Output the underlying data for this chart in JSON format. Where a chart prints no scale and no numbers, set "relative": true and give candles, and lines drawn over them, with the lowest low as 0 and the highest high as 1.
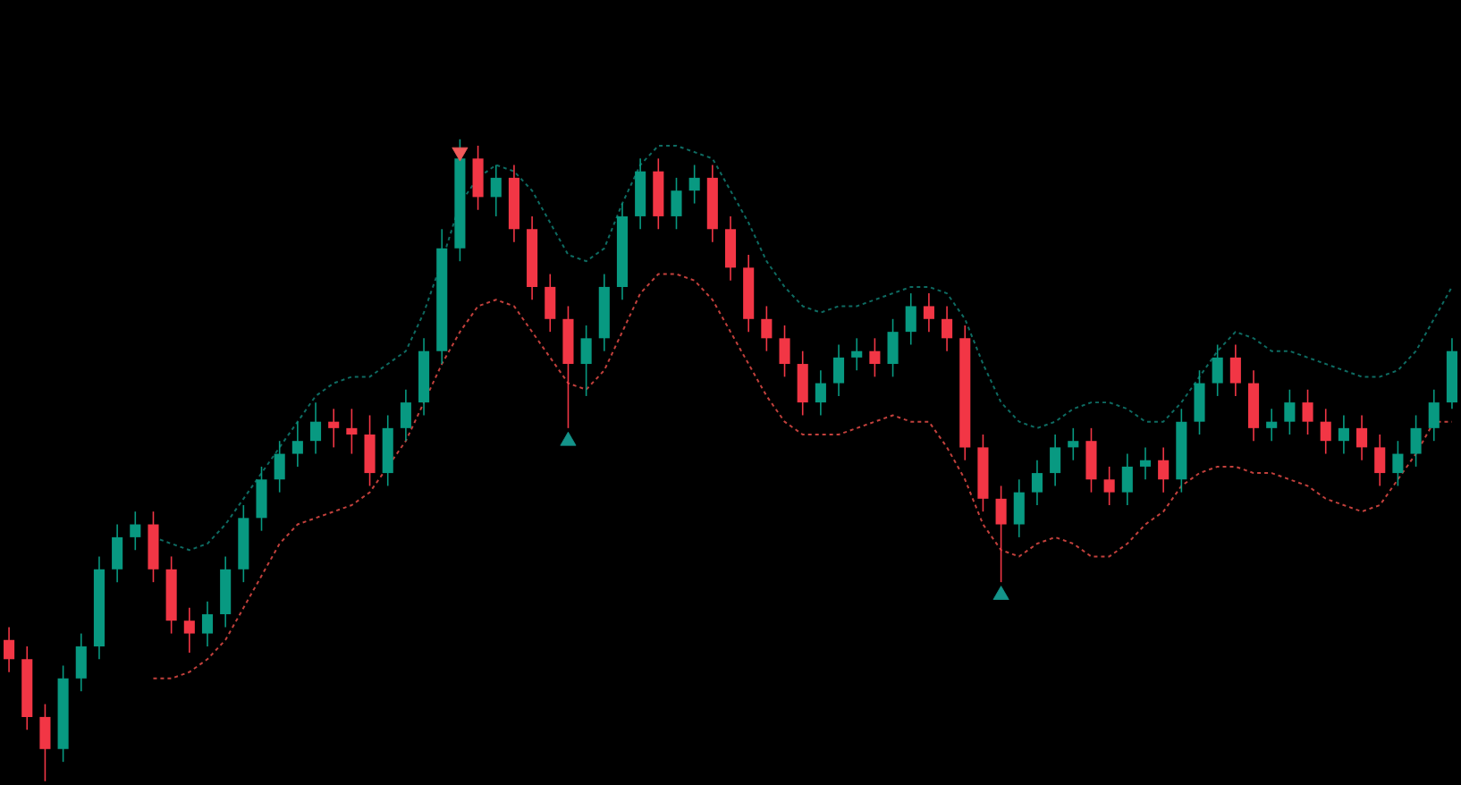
{
  "chart_data": {
    "type": "candlestick",
    "relative": true,
    "categories": [
      null,
      null,
      null,
      null,
      null,
      null,
      null,
      null,
      null,
      null,
      null,
      null,
      null,
      null,
      null,
      null,
      null,
      null,
      null,
      null,
      null,
      null,
      null,
      null,
      null,
      null,
      null,
      null,
      null,
      null,
      null,
      null,
      null,
      null,
      null,
      null,
      null,
      null,
      null,
      null,
      null,
      null,
      null,
      null,
      null,
      null,
      null,
      null,
      null,
      null,
      null,
      null,
      null,
      null,
      null,
      null,
      null,
      null,
      null,
      null,
      null,
      null,
      null,
      null,
      null,
      null,
      null,
      null,
      null,
      null,
      null,
      null,
      null,
      null,
      null,
      null,
      null,
      null,
      null,
      null,
      null
    ],
    "ohlc": [
      [
        0.22,
        0.24,
        0.17,
        0.19
      ],
      [
        0.19,
        0.21,
        0.08,
        0.1
      ],
      [
        0.1,
        0.12,
        0.0,
        0.05
      ],
      [
        0.05,
        0.18,
        0.03,
        0.16
      ],
      [
        0.16,
        0.23,
        0.14,
        0.21
      ],
      [
        0.21,
        0.35,
        0.19,
        0.33
      ],
      [
        0.33,
        0.4,
        0.31,
        0.38
      ],
      [
        0.38,
        0.42,
        0.36,
        0.4
      ],
      [
        0.4,
        0.42,
        0.31,
        0.33
      ],
      [
        0.33,
        0.35,
        0.23,
        0.25
      ],
      [
        0.25,
        0.27,
        0.2,
        0.23
      ],
      [
        0.23,
        0.28,
        0.21,
        0.26
      ],
      [
        0.26,
        0.35,
        0.24,
        0.33
      ],
      [
        0.33,
        0.43,
        0.31,
        0.41
      ],
      [
        0.41,
        0.49,
        0.39,
        0.47
      ],
      [
        0.47,
        0.53,
        0.45,
        0.51
      ],
      [
        0.51,
        0.56,
        0.49,
        0.53
      ],
      [
        0.53,
        0.59,
        0.51,
        0.56
      ],
      [
        0.56,
        0.58,
        0.52,
        0.55
      ],
      [
        0.55,
        0.58,
        0.51,
        0.54
      ],
      [
        0.54,
        0.57,
        0.46,
        0.48
      ],
      [
        0.48,
        0.57,
        0.46,
        0.55
      ],
      [
        0.55,
        0.61,
        0.53,
        0.59
      ],
      [
        0.59,
        0.69,
        0.57,
        0.67
      ],
      [
        0.67,
        0.86,
        0.65,
        0.83
      ],
      [
        0.83,
        1.0,
        0.81,
        0.97
      ],
      [
        0.97,
        0.99,
        0.89,
        0.91
      ],
      [
        0.91,
        0.96,
        0.88,
        0.94
      ],
      [
        0.94,
        0.96,
        0.84,
        0.86
      ],
      [
        0.86,
        0.88,
        0.75,
        0.77
      ],
      [
        0.77,
        0.79,
        0.7,
        0.72
      ],
      [
        0.72,
        0.74,
        0.55,
        0.65
      ],
      [
        0.65,
        0.71,
        0.6,
        0.69
      ],
      [
        0.69,
        0.79,
        0.67,
        0.77
      ],
      [
        0.77,
        0.9,
        0.75,
        0.88
      ],
      [
        0.88,
        0.97,
        0.86,
        0.95
      ],
      [
        0.95,
        0.97,
        0.86,
        0.88
      ],
      [
        0.88,
        0.94,
        0.86,
        0.92
      ],
      [
        0.92,
        0.96,
        0.9,
        0.94
      ],
      [
        0.94,
        0.96,
        0.84,
        0.86
      ],
      [
        0.86,
        0.88,
        0.78,
        0.8
      ],
      [
        0.8,
        0.82,
        0.7,
        0.72
      ],
      [
        0.72,
        0.74,
        0.67,
        0.69
      ],
      [
        0.69,
        0.71,
        0.63,
        0.65
      ],
      [
        0.65,
        0.67,
        0.57,
        0.59
      ],
      [
        0.59,
        0.64,
        0.57,
        0.62
      ],
      [
        0.62,
        0.68,
        0.6,
        0.66
      ],
      [
        0.66,
        0.69,
        0.64,
        0.67
      ],
      [
        0.67,
        0.69,
        0.63,
        0.65
      ],
      [
        0.65,
        0.72,
        0.63,
        0.7
      ],
      [
        0.7,
        0.76,
        0.68,
        0.74
      ],
      [
        0.74,
        0.76,
        0.7,
        0.72
      ],
      [
        0.72,
        0.74,
        0.67,
        0.69
      ],
      [
        0.69,
        0.71,
        0.5,
        0.52
      ],
      [
        0.52,
        0.54,
        0.42,
        0.44
      ],
      [
        0.44,
        0.46,
        0.31,
        0.4
      ],
      [
        0.4,
        0.47,
        0.38,
        0.45
      ],
      [
        0.45,
        0.5,
        0.43,
        0.48
      ],
      [
        0.48,
        0.54,
        0.46,
        0.52
      ],
      [
        0.52,
        0.55,
        0.5,
        0.53
      ],
      [
        0.53,
        0.55,
        0.45,
        0.47
      ],
      [
        0.47,
        0.49,
        0.43,
        0.45
      ],
      [
        0.45,
        0.51,
        0.43,
        0.49
      ],
      [
        0.49,
        0.52,
        0.47,
        0.5
      ],
      [
        0.5,
        0.52,
        0.45,
        0.47
      ],
      [
        0.47,
        0.58,
        0.45,
        0.56
      ],
      [
        0.56,
        0.64,
        0.54,
        0.62
      ],
      [
        0.62,
        0.68,
        0.6,
        0.66
      ],
      [
        0.66,
        0.68,
        0.6,
        0.62
      ],
      [
        0.62,
        0.64,
        0.53,
        0.55
      ],
      [
        0.55,
        0.58,
        0.53,
        0.56
      ],
      [
        0.56,
        0.61,
        0.54,
        0.59
      ],
      [
        0.59,
        0.61,
        0.54,
        0.56
      ],
      [
        0.56,
        0.58,
        0.51,
        0.53
      ],
      [
        0.53,
        0.57,
        0.51,
        0.55
      ],
      [
        0.55,
        0.57,
        0.5,
        0.52
      ],
      [
        0.52,
        0.54,
        0.46,
        0.48
      ],
      [
        0.48,
        0.53,
        0.46,
        0.51
      ],
      [
        0.51,
        0.57,
        0.49,
        0.55
      ],
      [
        0.55,
        0.61,
        0.53,
        0.59
      ],
      [
        0.59,
        0.69,
        0.58,
        0.67
      ]
    ],
    "series": [
      {
        "type": "line",
        "color": "#0e6b62",
        "line_style": "dashed",
        "values": [
          null,
          null,
          null,
          null,
          null,
          null,
          null,
          null,
          0.38,
          0.37,
          0.36,
          0.37,
          0.4,
          0.44,
          0.48,
          0.52,
          0.56,
          0.6,
          0.62,
          0.63,
          0.63,
          0.65,
          0.67,
          0.73,
          0.81,
          0.9,
          0.94,
          0.96,
          0.95,
          0.92,
          0.87,
          0.82,
          0.81,
          0.83,
          0.9,
          0.96,
          0.99,
          0.99,
          0.98,
          0.97,
          0.92,
          0.87,
          0.81,
          0.77,
          0.74,
          0.73,
          0.74,
          0.74,
          0.75,
          0.76,
          0.77,
          0.77,
          0.76,
          0.72,
          0.65,
          0.59,
          0.56,
          0.55,
          0.56,
          0.58,
          0.59,
          0.59,
          0.58,
          0.56,
          0.56,
          0.59,
          0.63,
          0.67,
          0.7,
          0.69,
          0.67,
          0.67,
          0.66,
          0.65,
          0.64,
          0.63,
          0.63,
          0.64,
          0.67,
          0.72,
          0.77
        ]
      },
      {
        "type": "line",
        "color": "#c2403c",
        "line_style": "dashed",
        "values": [
          null,
          null,
          null,
          null,
          null,
          null,
          null,
          null,
          0.16,
          0.16,
          0.17,
          0.19,
          0.22,
          0.27,
          0.32,
          0.37,
          0.4,
          0.41,
          0.42,
          0.43,
          0.45,
          0.49,
          0.53,
          0.59,
          0.65,
          0.7,
          0.74,
          0.75,
          0.74,
          0.7,
          0.66,
          0.62,
          0.61,
          0.64,
          0.7,
          0.76,
          0.79,
          0.79,
          0.78,
          0.75,
          0.7,
          0.65,
          0.6,
          0.56,
          0.54,
          0.54,
          0.54,
          0.55,
          0.56,
          0.57,
          0.56,
          0.56,
          0.52,
          0.47,
          0.4,
          0.36,
          0.35,
          0.37,
          0.38,
          0.37,
          0.35,
          0.35,
          0.37,
          0.4,
          0.42,
          0.46,
          0.48,
          0.49,
          0.49,
          0.48,
          0.48,
          0.47,
          0.46,
          0.44,
          0.43,
          0.42,
          0.43,
          0.47,
          0.51,
          0.56,
          0.56
        ]
      },
      {
        "type": "scatter",
        "color": "#f05a5a",
        "marker": "triangle-down",
        "values": [
          null,
          null,
          null,
          null,
          null,
          null,
          null,
          null,
          null,
          null,
          null,
          null,
          null,
          null,
          null,
          null,
          null,
          null,
          null,
          null,
          null,
          null,
          null,
          null,
          null,
          0.98,
          null,
          null,
          null,
          null,
          null,
          null,
          null,
          null,
          null,
          null,
          null,
          null,
          null,
          null,
          null,
          null,
          null,
          null,
          null,
          null,
          null,
          null,
          null,
          null,
          null,
          null,
          null,
          null,
          null,
          null,
          null,
          null,
          null,
          null,
          null,
          null,
          null,
          null,
          null,
          null,
          null,
          null,
          null,
          null,
          null,
          null,
          null,
          null,
          null,
          null,
          null,
          null,
          null,
          null,
          null
        ]
      },
      {
        "type": "scatter",
        "color": "#14948a",
        "marker": "triangle",
        "values": [
          null,
          null,
          null,
          null,
          null,
          null,
          null,
          null,
          null,
          null,
          null,
          null,
          null,
          null,
          null,
          null,
          null,
          null,
          null,
          null,
          null,
          null,
          null,
          null,
          null,
          null,
          null,
          null,
          null,
          null,
          null,
          0.53,
          null,
          null,
          null,
          null,
          null,
          null,
          null,
          null,
          null,
          null,
          null,
          null,
          null,
          null,
          null,
          null,
          null,
          null,
          null,
          null,
          null,
          null,
          null,
          0.29,
          null,
          null,
          null,
          null,
          null,
          null,
          null,
          null,
          null,
          null,
          null,
          null,
          null,
          null,
          null,
          null,
          null,
          null,
          null,
          null,
          null,
          null,
          null,
          null,
          null
        ]
      }
    ]
  }
}
